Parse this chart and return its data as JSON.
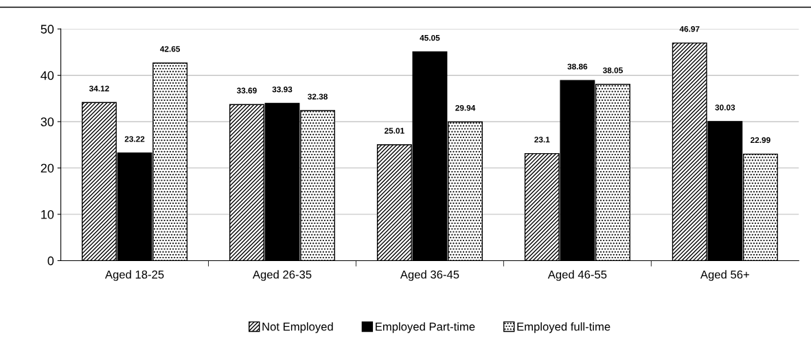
{
  "chart_data": {
    "type": "bar",
    "categories": [
      "Aged 18-25",
      "Aged 26-35",
      "Aged 36-45",
      "Aged 46-55",
      "Aged 56+"
    ],
    "series": [
      {
        "name": "Not Employed",
        "color": "#000000",
        "values": [
          34.12,
          33.69,
          25.01,
          23.1,
          46.97
        ]
      },
      {
        "name": "Employed Part-time",
        "color": "#000000",
        "values": [
          23.22,
          33.93,
          45.05,
          38.86,
          30.03
        ]
      },
      {
        "name": "Employed full-time",
        "color": "#000000",
        "values": [
          42.65,
          32.38,
          29.94,
          38.05,
          22.99
        ]
      }
    ],
    "ylim": [
      0,
      50
    ],
    "yticks": [
      0,
      10,
      20,
      30,
      40,
      50
    ],
    "grid": "y",
    "legend": "bottom",
    "data_labels": true
  }
}
